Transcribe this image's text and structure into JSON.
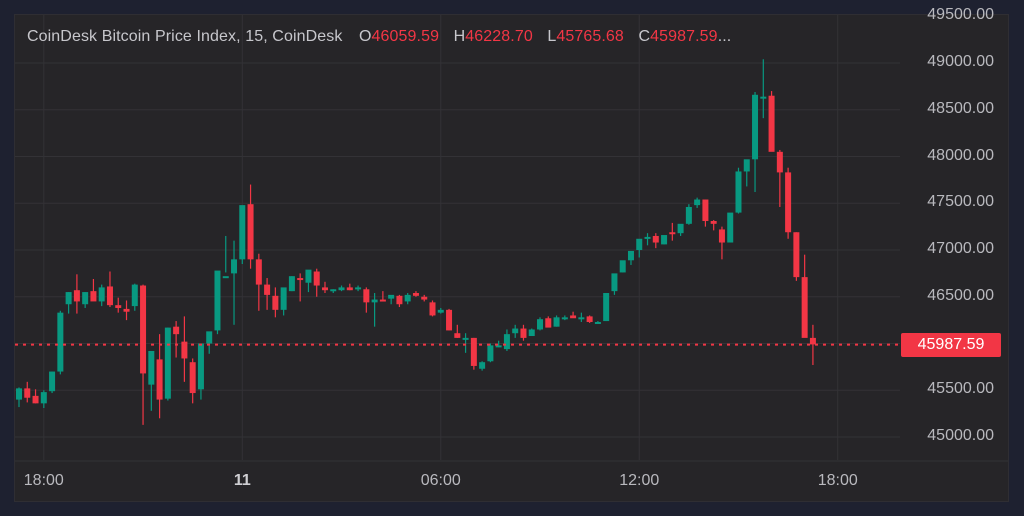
{
  "legend": {
    "symbol": "CoinDesk Bitcoin Price Index, 15, CoinDesk",
    "open_label": "O",
    "open": "46059.59",
    "high_label": "H",
    "high": "46228.70",
    "low_label": "L",
    "low": "45765.68",
    "close_label": "C",
    "close": "45987.59",
    "more": "..."
  },
  "last_price": "45987.59",
  "colors": {
    "up": "#089981",
    "down": "#f23645",
    "background": "#262528",
    "grid": "#333236"
  },
  "chart_data": {
    "type": "candlestick",
    "title": "CoinDesk Bitcoin Price Index, 15, CoinDesk",
    "interval": "15",
    "xlabel": "",
    "ylabel": "",
    "ylim": [
      44800,
      49500
    ],
    "y_ticks": [
      "49500.00",
      "49000.00",
      "48500.00",
      "48000.00",
      "47500.00",
      "47000.00",
      "46500.00",
      "46000.00",
      "45500.00",
      "45000.00"
    ],
    "x_ticks": [
      {
        "label": "18:00",
        "index": 3,
        "bold": false
      },
      {
        "label": "11",
        "index": 27,
        "bold": true
      },
      {
        "label": "06:00",
        "index": 51,
        "bold": false
      },
      {
        "label": "12:00",
        "index": 75,
        "bold": false
      },
      {
        "label": "18:00",
        "index": 99,
        "bold": false
      }
    ],
    "grid": true,
    "last_price_line": 45987.59,
    "candles": [
      [
        45400,
        45530,
        45320,
        45520
      ],
      [
        45520,
        45590,
        45370,
        45420
      ],
      [
        45440,
        45510,
        45360,
        45360
      ],
      [
        45360,
        45500,
        45310,
        45480
      ],
      [
        45490,
        45700,
        45470,
        45700
      ],
      [
        45700,
        46350,
        45670,
        46330
      ],
      [
        46420,
        46550,
        46320,
        46550
      ],
      [
        46570,
        46740,
        46320,
        46450
      ],
      [
        46420,
        46550,
        46380,
        46550
      ],
      [
        46560,
        46690,
        46500,
        46450
      ],
      [
        46450,
        46630,
        46400,
        46600
      ],
      [
        46610,
        46770,
        46390,
        46410
      ],
      [
        46410,
        46490,
        46330,
        46380
      ],
      [
        46370,
        46460,
        46250,
        46340
      ],
      [
        46400,
        46640,
        46350,
        46630
      ],
      [
        46620,
        46630,
        45130,
        45680
      ],
      [
        45560,
        45900,
        45280,
        45920
      ],
      [
        45830,
        46100,
        45200,
        45400
      ],
      [
        45410,
        46170,
        45390,
        46170
      ],
      [
        46180,
        46240,
        45850,
        46100
      ],
      [
        46020,
        46290,
        45590,
        45840
      ],
      [
        45800,
        45840,
        45360,
        45470
      ],
      [
        45510,
        46000,
        45400,
        46000
      ],
      [
        46000,
        46060,
        45890,
        46130
      ],
      [
        46140,
        46550,
        46100,
        46780
      ],
      [
        46700,
        47150,
        46760,
        46720
      ],
      [
        46750,
        47100,
        46200,
        46900
      ],
      [
        46900,
        47470,
        46850,
        47480
      ],
      [
        47490,
        47700,
        46800,
        46900
      ],
      [
        46900,
        46960,
        46350,
        46630
      ],
      [
        46630,
        46700,
        46360,
        46520
      ],
      [
        46510,
        46600,
        46280,
        46360
      ],
      [
        46360,
        46590,
        46300,
        46600
      ],
      [
        46560,
        46720,
        46560,
        46720
      ],
      [
        46700,
        46750,
        46450,
        46690
      ],
      [
        46650,
        46770,
        46550,
        46790
      ],
      [
        46770,
        46800,
        46500,
        46620
      ],
      [
        46600,
        46660,
        46540,
        46570
      ],
      [
        46570,
        46580,
        46540,
        46580
      ],
      [
        46570,
        46620,
        46560,
        46600
      ],
      [
        46600,
        46640,
        46570,
        46570
      ],
      [
        46590,
        46620,
        46560,
        46600
      ],
      [
        46580,
        46600,
        46330,
        46440
      ],
      [
        46440,
        46540,
        46180,
        46470
      ],
      [
        46470,
        46560,
        46460,
        46460
      ],
      [
        46480,
        46500,
        46420,
        46520
      ],
      [
        46510,
        46520,
        46390,
        46420
      ],
      [
        46450,
        46540,
        46420,
        46520
      ],
      [
        46540,
        46560,
        46500,
        46510
      ],
      [
        46500,
        46520,
        46450,
        46470
      ],
      [
        46440,
        46460,
        46290,
        46300
      ],
      [
        46330,
        46380,
        46320,
        46360
      ],
      [
        46360,
        46370,
        46140,
        46140
      ],
      [
        46110,
        46200,
        46060,
        46060
      ],
      [
        46060,
        46110,
        45900,
        46060
      ],
      [
        46060,
        46060,
        45720,
        45760
      ],
      [
        45730,
        45810,
        45710,
        45800
      ],
      [
        45810,
        46000,
        45800,
        45980
      ],
      [
        45980,
        46030,
        45960,
        45980
      ],
      [
        45940,
        46150,
        45920,
        46100
      ],
      [
        46110,
        46200,
        46060,
        46160
      ],
      [
        46160,
        46200,
        46030,
        46060
      ],
      [
        46080,
        46160,
        46080,
        46150
      ],
      [
        46150,
        46280,
        46140,
        46260
      ],
      [
        46270,
        46290,
        46180,
        46170
      ],
      [
        46180,
        46300,
        46180,
        46280
      ],
      [
        46270,
        46300,
        46250,
        46280
      ],
      [
        46300,
        46340,
        46290,
        46270
      ],
      [
        46270,
        46330,
        46230,
        46280
      ],
      [
        46290,
        46300,
        46220,
        46230
      ],
      [
        46230,
        46240,
        46220,
        46230
      ],
      [
        46240,
        46540,
        46240,
        46540
      ],
      [
        46560,
        46740,
        46520,
        46750
      ],
      [
        46760,
        46880,
        46760,
        46890
      ],
      [
        46890,
        46980,
        46840,
        46990
      ],
      [
        47000,
        47100,
        46920,
        47120
      ],
      [
        47130,
        47180,
        47050,
        47140
      ],
      [
        47150,
        47180,
        47020,
        47080
      ],
      [
        47060,
        47130,
        47060,
        47160
      ],
      [
        47190,
        47290,
        47100,
        47180
      ],
      [
        47180,
        47260,
        47150,
        47280
      ],
      [
        47280,
        47490,
        47270,
        47460
      ],
      [
        47480,
        47560,
        47450,
        47540
      ],
      [
        47540,
        47540,
        47250,
        47310
      ],
      [
        47310,
        47320,
        47210,
        47280
      ],
      [
        47220,
        47250,
        46900,
        47080
      ],
      [
        47080,
        47340,
        47080,
        47400
      ],
      [
        47400,
        47880,
        47390,
        47840
      ],
      [
        47840,
        47950,
        47680,
        47970
      ],
      [
        47970,
        48690,
        47620,
        48660
      ],
      [
        48640,
        49040,
        48410,
        48640
      ],
      [
        48650,
        48700,
        48090,
        48050
      ],
      [
        48050,
        48070,
        47460,
        47830
      ],
      [
        47830,
        47880,
        47120,
        47190
      ],
      [
        47190,
        47190,
        46670,
        46710
      ],
      [
        46710,
        46950,
        46530,
        46060
      ],
      [
        46060,
        46200,
        45770,
        45990
      ]
    ]
  }
}
